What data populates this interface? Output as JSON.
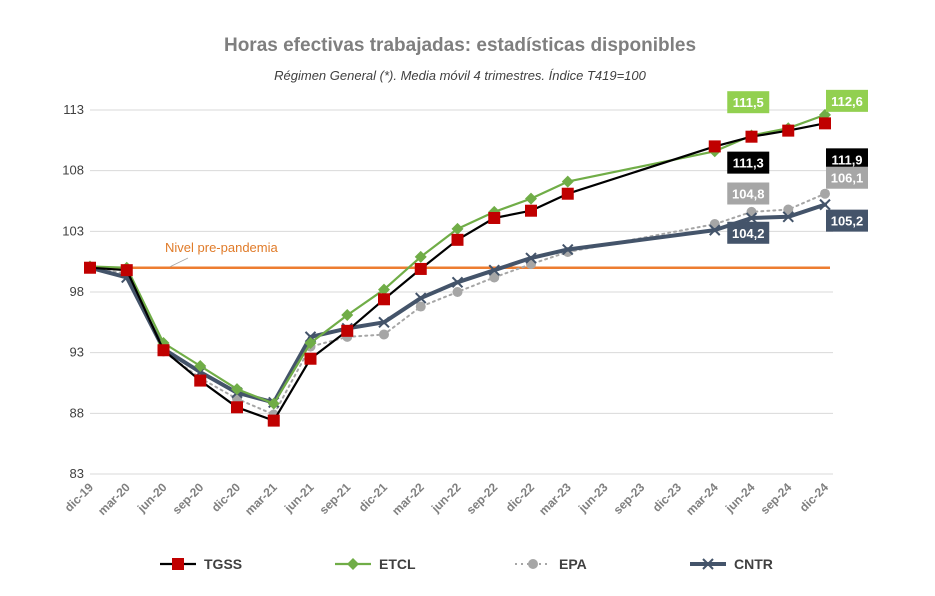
{
  "chart_data": {
    "type": "line",
    "title": "Horas efectivas trabajadas: estadísticas disponibles",
    "subtitle": "Régimen General (*). Media móvil 4 trimestres. Índice T419=100",
    "categories": [
      "dic-19",
      "mar-20",
      "jun-20",
      "sep-20",
      "dic-20",
      "mar-21",
      "jun-21",
      "sep-21",
      "dic-21",
      "mar-22",
      "jun-22",
      "sep-22",
      "dic-22",
      "mar-23",
      "jun-23",
      "sep-23",
      "dic-23",
      "mar-24",
      "jun-24",
      "sep-24",
      "dic-24"
    ],
    "ylim": [
      83,
      113
    ],
    "yticks": [
      "83",
      "88",
      "93",
      "98",
      "103",
      "108",
      "113"
    ],
    "xlabel": "",
    "ylabel": "",
    "reference_line": {
      "value": 100,
      "label": "Nivel pre-pandemia",
      "color": "#ed7d31"
    },
    "series": [
      {
        "name": "TGSS",
        "color": "#000000",
        "marker": "square",
        "marker_color": "#c00000",
        "values": [
          100,
          99.8,
          93.2,
          90.7,
          88.5,
          87.4,
          92.5,
          94.8,
          97.4,
          99.9,
          102.3,
          104.1,
          104.7,
          106.1,
          null,
          null,
          null,
          110.0,
          110.8,
          111.3,
          111.9
        ],
        "labels": [
          {
            "index": 19,
            "text": "111,3",
            "bg": "#000000"
          },
          {
            "index": 20,
            "text": "111,9",
            "bg": "#000000"
          }
        ]
      },
      {
        "name": "ETCL",
        "color": "#70ad47",
        "marker": "diamond",
        "marker_color": "#70ad47",
        "values": [
          100.1,
          100.0,
          93.8,
          91.9,
          90.0,
          88.8,
          93.8,
          96.1,
          98.2,
          100.9,
          103.2,
          104.6,
          105.7,
          107.1,
          null,
          null,
          null,
          109.6,
          110.9,
          111.5,
          112.6
        ],
        "labels": [
          {
            "index": 19,
            "text": "111,5",
            "bg": "#92d050"
          },
          {
            "index": 20,
            "text": "112,6",
            "bg": "#92d050"
          }
        ]
      },
      {
        "name": "EPA",
        "color": "#a6a6a6",
        "marker": "circle",
        "marker_color": "#a6a6a6",
        "values": [
          100,
          99.5,
          93.1,
          90.9,
          89.2,
          87.9,
          93.5,
          94.3,
          94.5,
          96.8,
          98.0,
          99.2,
          100.3,
          101.3,
          null,
          null,
          null,
          103.6,
          104.6,
          104.8,
          106.1
        ],
        "labels": [
          {
            "index": 19,
            "text": "104,8",
            "bg": "#a6a6a6"
          },
          {
            "index": 20,
            "text": "106,1",
            "bg": "#a6a6a6"
          }
        ]
      },
      {
        "name": "CNTR",
        "color": "#44546a",
        "marker": "x",
        "marker_color": "#44546a",
        "values": [
          100,
          99.2,
          93.3,
          91.4,
          89.7,
          88.9,
          94.3,
          95.0,
          95.5,
          97.5,
          98.8,
          99.8,
          100.8,
          101.5,
          null,
          null,
          null,
          103.1,
          104.1,
          104.2,
          105.2
        ],
        "labels": [
          {
            "index": 19,
            "text": "104,2",
            "bg": "#44546a"
          },
          {
            "index": 20,
            "text": "105,2",
            "bg": "#44546a"
          }
        ]
      }
    ],
    "legend": [
      "TGSS",
      "ETCL",
      "EPA",
      "CNTR"
    ],
    "grid": true
  }
}
